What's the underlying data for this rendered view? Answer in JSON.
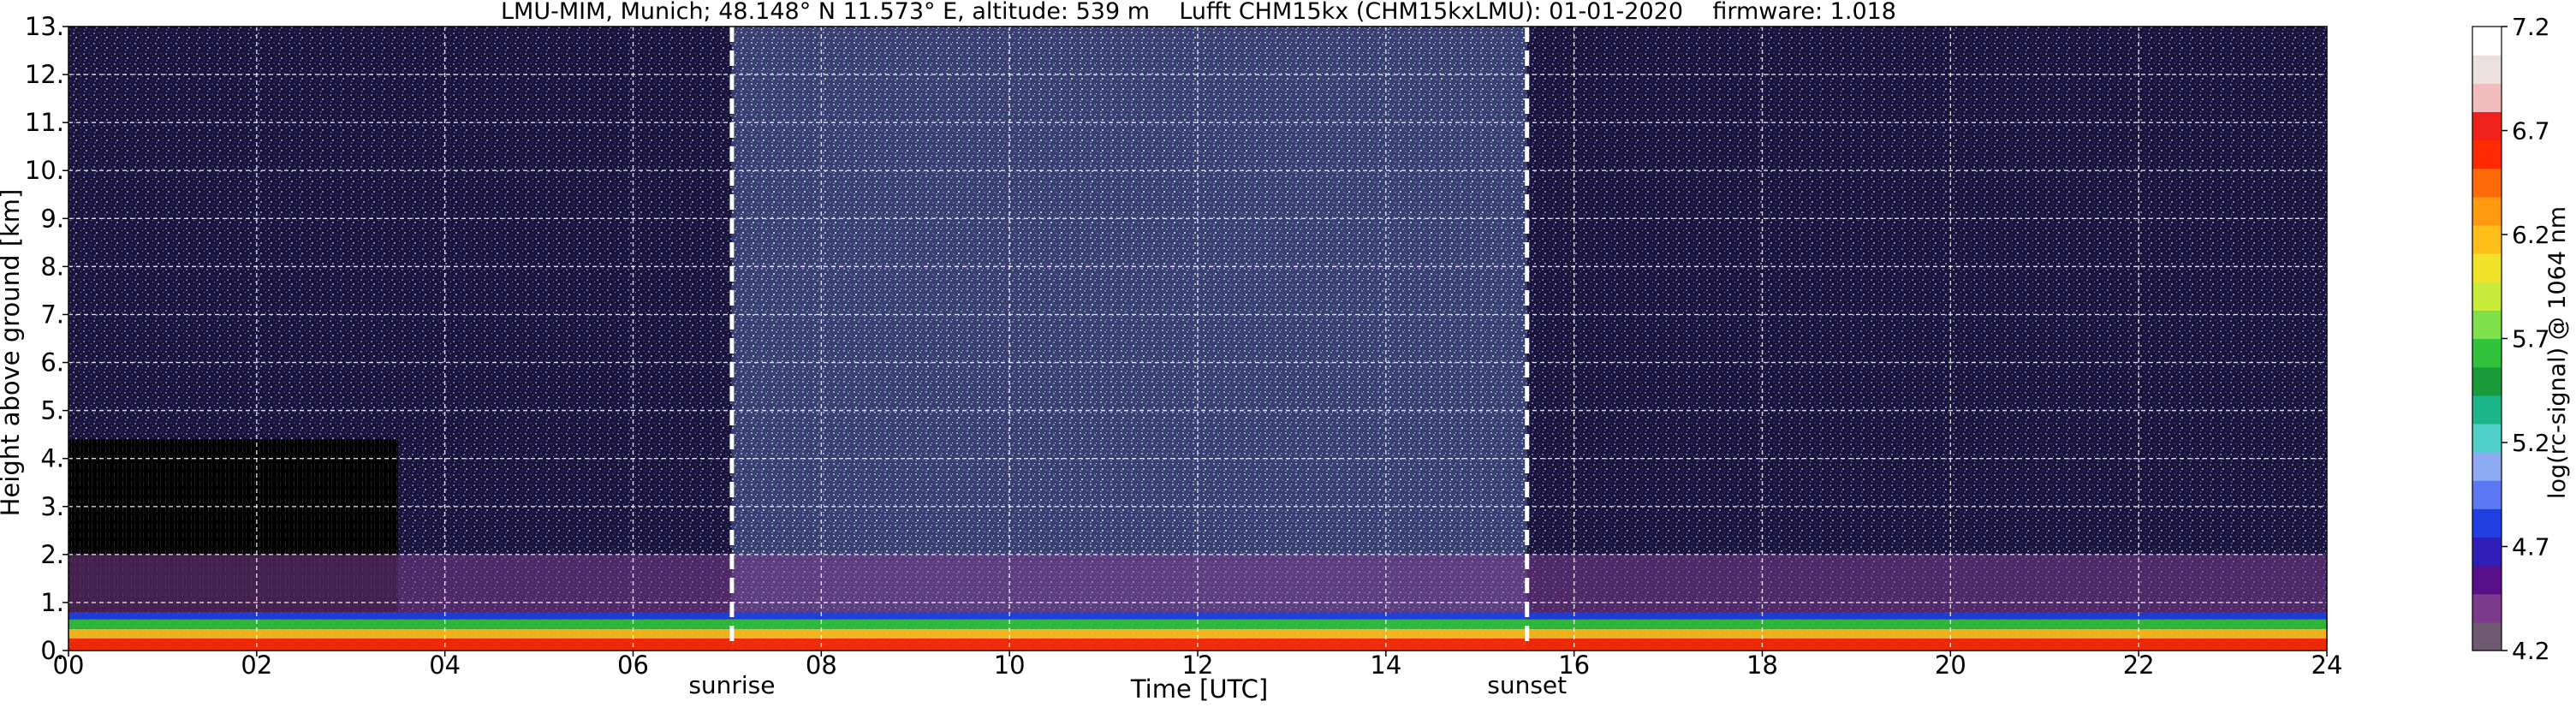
{
  "chart_data": {
    "type": "heatmap",
    "title": "LMU-MIM, Munich; 48.148° N 11.573° E, altitude: 539 m    Lufft CHM15kx (CHM15kxLMU): 01-01-2020    firmware: 1.018",
    "xlabel": "Time [UTC]",
    "ylabel": "Height above ground [km]",
    "xlim": [
      0,
      24
    ],
    "ylim": [
      0,
      13
    ],
    "x_ticks": [
      "00",
      "02",
      "04",
      "06",
      "08",
      "10",
      "12",
      "14",
      "16",
      "18",
      "20",
      "22",
      "24"
    ],
    "y_ticks": [
      "0.",
      "1.",
      "2.",
      "3.",
      "4.",
      "5.",
      "6.",
      "7.",
      "8.",
      "9.",
      "10.",
      "11.",
      "12.",
      "13."
    ],
    "grid": true,
    "markers": [
      {
        "label": "sunrise",
        "x": 7.05
      },
      {
        "label": "sunset",
        "x": 15.5
      }
    ],
    "colorbar": {
      "label": "log(rc-signal) @ 1064 nm",
      "range": [
        4.2,
        7.2
      ],
      "ticks": [
        "4.2",
        "4.7",
        "5.2",
        "5.7",
        "6.2",
        "6.7",
        "7.2"
      ],
      "colors": [
        "#6d5a70",
        "#7c3a8c",
        "#5a0f8a",
        "#2f1fb8",
        "#1f3fe0",
        "#5a79f2",
        "#8faaf5",
        "#4fd0c8",
        "#1bb58a",
        "#1a9c3a",
        "#2fc23a",
        "#7fe04a",
        "#c8ec3a",
        "#f2e42a",
        "#ffbf1a",
        "#ff9a10",
        "#ff6a08",
        "#ff2a00",
        "#f0201a",
        "#f4bdbd",
        "#ece0de",
        "#ffffff"
      ]
    },
    "layers": [
      {
        "name": "",
        "bottom": 0.0,
        "top": 0.25,
        "color": "#ff2a00"
      },
      {
        "name": "",
        "bottom": 0.25,
        "top": 0.45,
        "color": "#ffbf1a"
      },
      {
        "name": "",
        "bottom": 0.45,
        "top": 0.65,
        "color": "#2fc23a"
      },
      {
        "name": "",
        "bottom": 0.65,
        "top": 0.8,
        "color": "#1f3fe0"
      },
      {
        "name": "",
        "bottom": 0.8,
        "top": 2.0,
        "color": "#7c3a8c"
      }
    ]
  }
}
